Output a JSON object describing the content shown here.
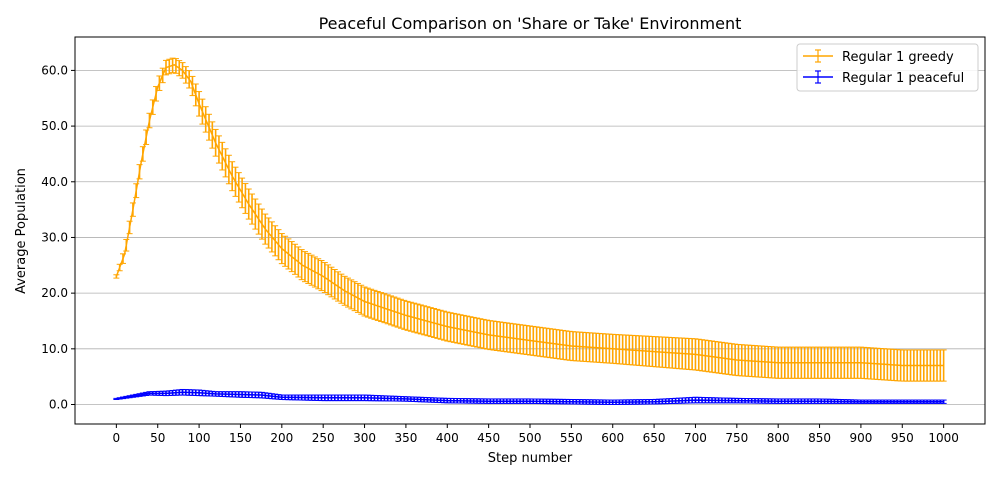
{
  "chart_data": {
    "type": "line",
    "title": "Peaceful Comparison on 'Share or Take' Environment",
    "xlabel": "Step number",
    "ylabel": "Average Population",
    "xlim": [
      -50,
      1050
    ],
    "ylim": [
      -3.5,
      66.0
    ],
    "x_ticks": [
      0,
      50,
      100,
      150,
      200,
      250,
      300,
      350,
      400,
      450,
      500,
      550,
      600,
      650,
      700,
      750,
      800,
      850,
      900,
      950,
      1000
    ],
    "y_ticks": [
      0.0,
      10.0,
      20.0,
      30.0,
      40.0,
      50.0,
      60.0
    ],
    "y_tick_labels": [
      "0.0",
      "10.0",
      "20.0",
      "30.0",
      "40.0",
      "50.0",
      "60.0"
    ],
    "grid": "horizontal",
    "legend_position": "top-right",
    "series": [
      {
        "name": "Regular 1 greedy",
        "color": "#ffa500",
        "error_bars": true,
        "x": [
          0,
          10,
          20,
          30,
          40,
          50,
          60,
          70,
          80,
          90,
          100,
          120,
          140,
          160,
          180,
          200,
          225,
          250,
          275,
          300,
          350,
          400,
          450,
          500,
          550,
          600,
          650,
          700,
          750,
          800,
          850,
          900,
          950,
          1000
        ],
        "y": [
          23.0,
          27.0,
          35.0,
          43.5,
          51.0,
          57.0,
          60.5,
          61.0,
          60.0,
          58.0,
          54.0,
          47.0,
          41.0,
          36.0,
          31.5,
          28.0,
          25.0,
          23.0,
          20.5,
          18.5,
          16.0,
          14.0,
          12.5,
          11.5,
          10.5,
          10.0,
          9.5,
          9.0,
          8.0,
          7.5,
          7.5,
          7.5,
          7.0,
          7.0
        ],
        "err": [
          0.3,
          1.0,
          1.2,
          1.3,
          1.3,
          1.3,
          1.3,
          1.3,
          1.4,
          1.6,
          2.2,
          2.4,
          2.6,
          2.7,
          2.7,
          2.7,
          2.7,
          2.7,
          2.6,
          2.6,
          2.6,
          2.6,
          2.6,
          2.6,
          2.6,
          2.6,
          2.7,
          2.8,
          2.8,
          2.8,
          2.8,
          2.8,
          2.8,
          2.8
        ]
      },
      {
        "name": "Regular 1 peaceful",
        "color": "#0000ff",
        "error_bars": true,
        "x": [
          0,
          20,
          40,
          60,
          80,
          100,
          120,
          150,
          175,
          200,
          250,
          300,
          350,
          400,
          450,
          500,
          550,
          600,
          650,
          700,
          750,
          800,
          850,
          900,
          950,
          1000
        ],
        "y": [
          1.0,
          1.5,
          2.0,
          2.0,
          2.2,
          2.1,
          1.9,
          1.8,
          1.7,
          1.3,
          1.2,
          1.2,
          1.0,
          0.7,
          0.6,
          0.6,
          0.5,
          0.4,
          0.5,
          0.8,
          0.7,
          0.6,
          0.6,
          0.5,
          0.5,
          0.5
        ],
        "err": [
          0.1,
          0.2,
          0.3,
          0.4,
          0.5,
          0.5,
          0.4,
          0.5,
          0.5,
          0.4,
          0.5,
          0.5,
          0.4,
          0.4,
          0.4,
          0.4,
          0.4,
          0.4,
          0.4,
          0.5,
          0.4,
          0.4,
          0.4,
          0.3,
          0.3,
          0.3
        ]
      }
    ]
  }
}
